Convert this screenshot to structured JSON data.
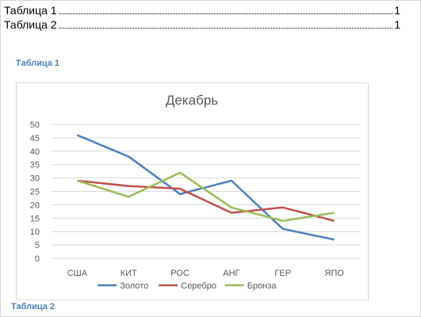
{
  "toc": [
    {
      "label": "Таблица 1",
      "page": "1"
    },
    {
      "label": "Таблица 2",
      "page": "1"
    }
  ],
  "captions": {
    "first": "Таблица 1",
    "second": "Таблица 2"
  },
  "colors": {
    "caption": "#4e81bd",
    "gold": "#4e81bd",
    "silver": "#c0504d",
    "bronze": "#9bbb59"
  },
  "chart_data": {
    "type": "line",
    "title": "Декабрь",
    "categories": [
      "США",
      "КИТ",
      "РОС",
      "АНГ",
      "ГЕР",
      "ЯПО"
    ],
    "series": [
      {
        "name": "Золото",
        "values": [
          46,
          38,
          24,
          29,
          11,
          7
        ],
        "color": "#4e81bd"
      },
      {
        "name": "Серебро",
        "values": [
          29,
          27,
          26,
          17,
          19,
          14
        ],
        "color": "#c0504d"
      },
      {
        "name": "Бронза",
        "values": [
          29,
          23,
          32,
          19,
          14,
          17
        ],
        "color": "#9bbb59"
      }
    ],
    "ylim": [
      0,
      50
    ],
    "yticks": [
      0,
      5,
      10,
      15,
      20,
      25,
      30,
      35,
      40,
      45,
      50
    ],
    "grid": true,
    "legend": "bottom"
  }
}
